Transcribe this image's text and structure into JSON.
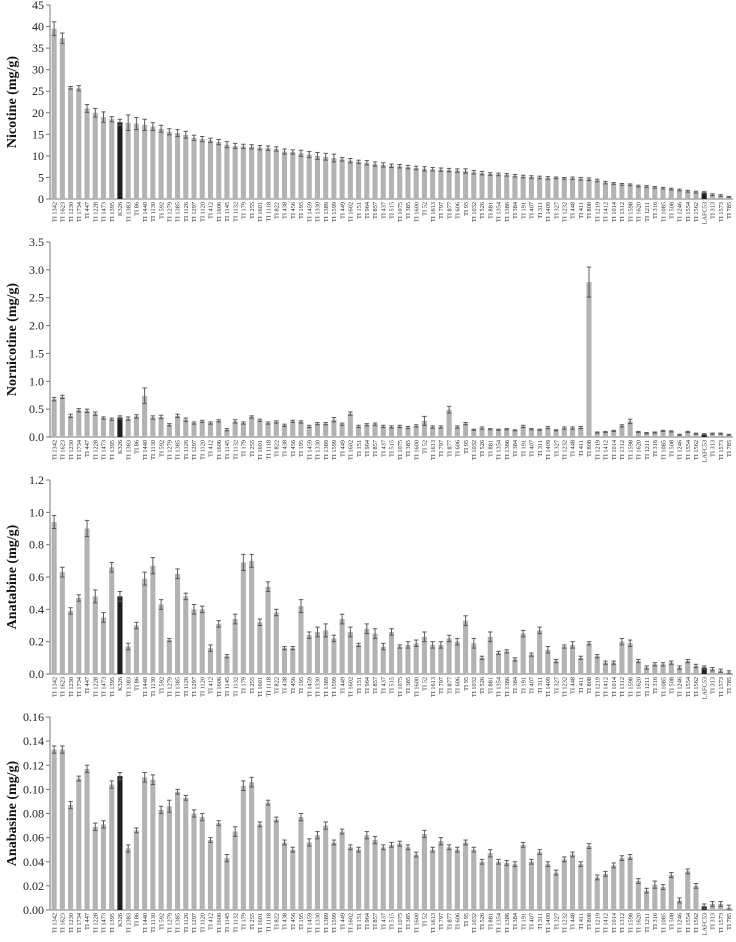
{
  "chart_data": [
    {
      "type": "bar",
      "ylabel": "Nicotine (mg/g)",
      "ylim": [
        0,
        45
      ],
      "yticks": [
        "0",
        "5",
        "10",
        "15",
        "20",
        "25",
        "30",
        "35",
        "40",
        "45"
      ],
      "grid": false,
      "categories": [
        "TI 1342",
        "TI 1623",
        "TI 1230",
        "TI 1734",
        "TI 447",
        "TI 1228",
        "TI 1473",
        "TI 1395",
        "K326",
        "TI 1383",
        "TI 86",
        "TI 1440",
        "TI 1130",
        "TI 592",
        "TI 1279",
        "TI 1385",
        "TI 1126",
        "TI 1297",
        "TI 1120",
        "TI 412",
        "TI 1606",
        "TI 1145",
        "TI 1132",
        "TI 179",
        "TI 255",
        "TI 1601",
        "TI 1118",
        "TI 822",
        "TI 438",
        "TI 456",
        "TI 195",
        "TI 1459",
        "TI 1330",
        "TI 1389",
        "TI 1599",
        "TI 449",
        "TI 1602",
        "TI 151",
        "TI 964",
        "TI 857",
        "TI 437",
        "TI 515",
        "TI 1075",
        "TI 385",
        "TI 1600",
        "TI 52",
        "TI 1613",
        "TI 797",
        "TI 877",
        "TI 606",
        "TI 95",
        "TI 1032",
        "TI 526",
        "TI 881",
        "TI 1354",
        "TI 1386",
        "TI 384",
        "TI 191",
        "TI 407",
        "TI 311",
        "TI 1409",
        "TI 327",
        "TI 1232",
        "TI 448",
        "TI 411",
        "TI 808",
        "TI 1219",
        "TI 1412",
        "TI 1014",
        "TI 1312",
        "TI 1598",
        "TI 1620",
        "TI 1211",
        "TI 316",
        "TI 1085",
        "TI 508",
        "TI 1246",
        "TI 1554",
        "TI 1562",
        "LAFC53",
        "TI 313",
        "TI 1573",
        "TI 785"
      ],
      "highlight": [
        "K326",
        "LAFC53"
      ],
      "values": [
        39.5,
        37.3,
        25.8,
        25.7,
        21.0,
        20.0,
        19.0,
        18.5,
        17.8,
        17.7,
        17.5,
        17.2,
        16.8,
        16.3,
        15.6,
        15.3,
        14.9,
        14.2,
        13.9,
        13.6,
        13.2,
        12.6,
        12.3,
        12.2,
        12.1,
        11.9,
        11.8,
        11.6,
        11.0,
        10.9,
        10.6,
        10.3,
        10.0,
        9.8,
        9.5,
        9.2,
        8.9,
        8.6,
        8.4,
        8.1,
        7.9,
        7.7,
        7.6,
        7.4,
        7.2,
        7.0,
        6.9,
        6.8,
        6.7,
        6.6,
        6.5,
        6.2,
        6.0,
        5.8,
        5.7,
        5.6,
        5.4,
        5.2,
        5.1,
        5.0,
        4.9,
        4.9,
        4.8,
        4.8,
        4.7,
        4.6,
        4.3,
        3.8,
        3.6,
        3.4,
        3.3,
        3.0,
        2.9,
        2.7,
        2.5,
        2.3,
        2.1,
        1.8,
        1.6,
        1.5,
        1.0,
        0.8,
        0.5
      ],
      "errors": [
        1.6,
        1.2,
        0.3,
        0.6,
        0.9,
        1.0,
        1.2,
        0.6,
        0.7,
        1.8,
        1.4,
        1.3,
        0.9,
        0.8,
        0.7,
        0.8,
        0.8,
        0.6,
        0.6,
        0.5,
        0.6,
        0.7,
        0.6,
        0.5,
        0.5,
        0.5,
        0.5,
        0.5,
        0.6,
        0.5,
        0.7,
        0.7,
        0.8,
        0.8,
        0.9,
        0.4,
        0.5,
        0.4,
        0.5,
        0.5,
        0.5,
        0.4,
        0.4,
        0.4,
        0.4,
        0.5,
        0.4,
        0.4,
        0.4,
        0.4,
        0.5,
        0.4,
        0.4,
        0.3,
        0.3,
        0.3,
        0.3,
        0.3,
        0.3,
        0.3,
        0.3,
        0.2,
        0.2,
        0.3,
        0.3,
        0.3,
        0.3,
        0.3,
        0.2,
        0.2,
        0.2,
        0.2,
        0.2,
        0.2,
        0.2,
        0.2,
        0.2,
        0.2,
        0.2,
        0.2,
        0.2,
        0.2,
        0.1
      ]
    },
    {
      "type": "bar",
      "ylabel": "Nornicotine (mg/g)",
      "ylim": [
        0,
        3.5
      ],
      "yticks": [
        "0.0",
        "0.5",
        "1.0",
        "1.5",
        "2.0",
        "2.5",
        "3.0",
        "3.5"
      ],
      "grid": false,
      "categories": [
        "TI 1342",
        "TI 1623",
        "TI 1230",
        "TI 1734",
        "TI 447",
        "TI 1228",
        "TI 1473",
        "TI 1395",
        "K326",
        "TI 1383",
        "TI 86",
        "TI 1440",
        "TI 1130",
        "TI 592",
        "TI 1279",
        "TI 1385",
        "TI 1126",
        "TI 1297",
        "TI 1120",
        "TI 412",
        "TI 1606",
        "TI 1145",
        "TI 1132",
        "TI 179",
        "TI 255",
        "TI 1601",
        "TI 1118",
        "TI 822",
        "TI 438",
        "TI 456",
        "TI 195",
        "TI 1459",
        "TI 1330",
        "TI 1389",
        "TI 1599",
        "TI 449",
        "TI 1602",
        "TI 151",
        "TI 964",
        "TI 857",
        "TI 437",
        "TI 515",
        "TI 1075",
        "TI 385",
        "TI 1600",
        "TI 52",
        "TI 1613",
        "TI 797",
        "TI 877",
        "TI 606",
        "TI 95",
        "TI 1032",
        "TI 526",
        "TI 881",
        "TI 1354",
        "TI 1386",
        "TI 384",
        "TI 191",
        "TI 407",
        "TI 311",
        "TI 1409",
        "TI 327",
        "TI 1232",
        "TI 448",
        "TI 411",
        "TI 808",
        "TI 1219",
        "TI 1412",
        "TI 1014",
        "TI 1312",
        "TI 1598",
        "TI 1620",
        "TI 1211",
        "TI 316",
        "TI 1085",
        "TI 508",
        "TI 1246",
        "TI 1554",
        "TI 1562",
        "LAFC53",
        "TI 313",
        "TI 1573",
        "TI 785"
      ],
      "highlight": [
        "K326",
        "LAFC53"
      ],
      "values": [
        0.68,
        0.72,
        0.38,
        0.48,
        0.47,
        0.42,
        0.34,
        0.32,
        0.35,
        0.33,
        0.37,
        0.74,
        0.35,
        0.36,
        0.22,
        0.38,
        0.31,
        0.25,
        0.28,
        0.25,
        0.29,
        0.13,
        0.28,
        0.25,
        0.36,
        0.3,
        0.25,
        0.27,
        0.21,
        0.28,
        0.27,
        0.19,
        0.24,
        0.24,
        0.31,
        0.23,
        0.42,
        0.19,
        0.22,
        0.23,
        0.19,
        0.18,
        0.19,
        0.17,
        0.2,
        0.29,
        0.18,
        0.18,
        0.49,
        0.18,
        0.24,
        0.13,
        0.16,
        0.14,
        0.13,
        0.14,
        0.12,
        0.19,
        0.14,
        0.13,
        0.17,
        0.12,
        0.16,
        0.16,
        0.17,
        2.78,
        0.08,
        0.09,
        0.11,
        0.2,
        0.28,
        0.09,
        0.07,
        0.08,
        0.11,
        0.1,
        0.04,
        0.09,
        0.06,
        0.05,
        0.06,
        0.06,
        0.04
      ],
      "errors": [
        0.03,
        0.03,
        0.03,
        0.03,
        0.03,
        0.03,
        0.02,
        0.02,
        0.03,
        0.03,
        0.03,
        0.14,
        0.03,
        0.03,
        0.02,
        0.03,
        0.03,
        0.02,
        0.02,
        0.02,
        0.02,
        0.02,
        0.03,
        0.02,
        0.02,
        0.02,
        0.02,
        0.02,
        0.02,
        0.02,
        0.02,
        0.02,
        0.02,
        0.02,
        0.04,
        0.02,
        0.03,
        0.02,
        0.02,
        0.02,
        0.02,
        0.02,
        0.02,
        0.02,
        0.02,
        0.08,
        0.02,
        0.02,
        0.06,
        0.02,
        0.02,
        0.01,
        0.02,
        0.01,
        0.01,
        0.01,
        0.01,
        0.02,
        0.01,
        0.01,
        0.02,
        0.01,
        0.02,
        0.02,
        0.02,
        0.27,
        0.01,
        0.01,
        0.01,
        0.02,
        0.04,
        0.01,
        0.01,
        0.01,
        0.01,
        0.01,
        0.01,
        0.01,
        0.01,
        0.01,
        0.01,
        0.01,
        0.01
      ]
    },
    {
      "type": "bar",
      "ylabel": "Anatabine (mg/g)",
      "ylim": [
        0,
        1.2
      ],
      "yticks": [
        "0.0",
        "0.2",
        "0.4",
        "0.6",
        "0.8",
        "1.0",
        "1.2"
      ],
      "grid": false,
      "categories": [
        "TI 1342",
        "TI 1623",
        "TI 1230",
        "TI 1734",
        "TI 447",
        "TI 1228",
        "TI 1473",
        "TI 1395",
        "K326",
        "TI 1383",
        "TI 86",
        "TI 1440",
        "TI 1130",
        "TI 592",
        "TI 1279",
        "TI 1385",
        "TI 1126",
        "TI 1297",
        "TI 1120",
        "TI 412",
        "TI 1606",
        "TI 1145",
        "TI 1132",
        "TI 179",
        "TI 255",
        "TI 1601",
        "TI 1118",
        "TI 822",
        "TI 438",
        "TI 456",
        "TI 195",
        "TI 1459",
        "TI 1330",
        "TI 1389",
        "TI 1599",
        "TI 449",
        "TI 1602",
        "TI 151",
        "TI 964",
        "TI 857",
        "TI 437",
        "TI 515",
        "TI 1075",
        "TI 385",
        "TI 1600",
        "TI 52",
        "TI 1613",
        "TI 797",
        "TI 877",
        "TI 606",
        "TI 95",
        "TI 1032",
        "TI 526",
        "TI 881",
        "TI 1354",
        "TI 1386",
        "TI 384",
        "TI 191",
        "TI 407",
        "TI 311",
        "TI 1409",
        "TI 327",
        "TI 1232",
        "TI 448",
        "TI 411",
        "TI 808",
        "TI 1219",
        "TI 1412",
        "TI 1014",
        "TI 1312",
        "TI 1598",
        "TI 1620",
        "TI 1211",
        "TI 316",
        "TI 1085",
        "TI 508",
        "TI 1246",
        "TI 1554",
        "TI 1562",
        "LAFC53",
        "TI 313",
        "TI 1573",
        "TI 785"
      ],
      "highlight": [
        "K326",
        "LAFC53"
      ],
      "values": [
        0.94,
        0.63,
        0.39,
        0.47,
        0.9,
        0.48,
        0.35,
        0.66,
        0.48,
        0.17,
        0.3,
        0.59,
        0.67,
        0.43,
        0.21,
        0.62,
        0.48,
        0.4,
        0.4,
        0.16,
        0.31,
        0.11,
        0.34,
        0.69,
        0.7,
        0.32,
        0.54,
        0.38,
        0.16,
        0.16,
        0.42,
        0.24,
        0.26,
        0.27,
        0.22,
        0.34,
        0.26,
        0.18,
        0.28,
        0.25,
        0.17,
        0.26,
        0.17,
        0.18,
        0.19,
        0.23,
        0.18,
        0.18,
        0.22,
        0.2,
        0.33,
        0.19,
        0.1,
        0.23,
        0.13,
        0.14,
        0.09,
        0.25,
        0.12,
        0.27,
        0.15,
        0.08,
        0.17,
        0.18,
        0.1,
        0.19,
        0.11,
        0.07,
        0.07,
        0.2,
        0.19,
        0.08,
        0.04,
        0.06,
        0.06,
        0.07,
        0.04,
        0.08,
        0.05,
        0.04,
        0.03,
        0.02,
        0.01
      ],
      "errors": [
        0.04,
        0.03,
        0.02,
        0.02,
        0.05,
        0.04,
        0.03,
        0.03,
        0.03,
        0.02,
        0.02,
        0.04,
        0.05,
        0.03,
        0.01,
        0.03,
        0.02,
        0.03,
        0.02,
        0.02,
        0.02,
        0.01,
        0.03,
        0.05,
        0.04,
        0.02,
        0.03,
        0.02,
        0.01,
        0.01,
        0.04,
        0.02,
        0.03,
        0.04,
        0.02,
        0.03,
        0.03,
        0.01,
        0.03,
        0.03,
        0.02,
        0.02,
        0.01,
        0.02,
        0.02,
        0.03,
        0.02,
        0.02,
        0.02,
        0.02,
        0.03,
        0.03,
        0.01,
        0.03,
        0.01,
        0.01,
        0.01,
        0.02,
        0.01,
        0.02,
        0.02,
        0.01,
        0.01,
        0.02,
        0.01,
        0.01,
        0.01,
        0.01,
        0.01,
        0.02,
        0.02,
        0.01,
        0.01,
        0.01,
        0.01,
        0.01,
        0.01,
        0.01,
        0.01,
        0.01,
        0.01,
        0.01,
        0.01
      ]
    },
    {
      "type": "bar",
      "ylabel": "Anabasine (mg/g)",
      "ylim": [
        0,
        0.16
      ],
      "yticks": [
        "0.00",
        "0.02",
        "0.04",
        "0.06",
        "0.08",
        "0.10",
        "0.12",
        "0.14",
        "0.16"
      ],
      "grid": false,
      "categories": [
        "TI 1342",
        "TI 1623",
        "TI 1230",
        "TI 1734",
        "TI 447",
        "TI 1228",
        "TI 1473",
        "TI 1395",
        "K326",
        "TI 1383",
        "TI 86",
        "TI 1440",
        "TI 1130",
        "TI 592",
        "TI 1279",
        "TI 1385",
        "TI 1126",
        "TI 1297",
        "TI 1120",
        "TI 412",
        "TI 1606",
        "TI 1145",
        "TI 1132",
        "TI 179",
        "TI 255",
        "TI 1601",
        "TI 1118",
        "TI 822",
        "TI 438",
        "TI 456",
        "TI 195",
        "TI 1459",
        "TI 1330",
        "TI 1389",
        "TI 1599",
        "TI 449",
        "TI 1602",
        "TI 151",
        "TI 964",
        "TI 857",
        "TI 437",
        "TI 515",
        "TI 1075",
        "TI 385",
        "TI 1600",
        "TI 52",
        "TI 1613",
        "TI 797",
        "TI 877",
        "TI 606",
        "TI 95",
        "TI 1032",
        "TI 526",
        "TI 881",
        "TI 1354",
        "TI 1386",
        "TI 384",
        "TI 191",
        "TI 407",
        "TI 311",
        "TI 1409",
        "TI 327",
        "TI 1232",
        "TI 448",
        "TI 411",
        "TI 808",
        "TI 1219",
        "TI 1412",
        "TI 1014",
        "TI 1312",
        "TI 1598",
        "TI 1620",
        "TI 1211",
        "TI 316",
        "TI 1085",
        "TI 508",
        "TI 1246",
        "TI 1554",
        "TI 1562",
        "LAFC53",
        "TI 313",
        "TI 1573",
        "TI 785"
      ],
      "highlight": [
        "K326",
        "LAFC53"
      ],
      "values": [
        0.133,
        0.133,
        0.087,
        0.109,
        0.117,
        0.069,
        0.071,
        0.104,
        0.111,
        0.051,
        0.066,
        0.11,
        0.108,
        0.083,
        0.086,
        0.098,
        0.093,
        0.08,
        0.077,
        0.058,
        0.072,
        0.043,
        0.065,
        0.103,
        0.106,
        0.071,
        0.089,
        0.075,
        0.056,
        0.05,
        0.077,
        0.056,
        0.062,
        0.07,
        0.056,
        0.065,
        0.052,
        0.05,
        0.062,
        0.058,
        0.052,
        0.054,
        0.055,
        0.052,
        0.046,
        0.063,
        0.05,
        0.057,
        0.052,
        0.05,
        0.056,
        0.05,
        0.04,
        0.047,
        0.04,
        0.039,
        0.038,
        0.054,
        0.04,
        0.048,
        0.038,
        0.031,
        0.042,
        0.046,
        0.038,
        0.053,
        0.027,
        0.03,
        0.037,
        0.043,
        0.044,
        0.024,
        0.016,
        0.021,
        0.019,
        0.029,
        0.008,
        0.032,
        0.02,
        0.003,
        0.005,
        0.005,
        0.002
      ],
      "errors": [
        0.003,
        0.003,
        0.003,
        0.002,
        0.003,
        0.003,
        0.003,
        0.003,
        0.003,
        0.003,
        0.002,
        0.004,
        0.004,
        0.003,
        0.005,
        0.002,
        0.002,
        0.003,
        0.003,
        0.002,
        0.002,
        0.003,
        0.004,
        0.004,
        0.004,
        0.002,
        0.002,
        0.002,
        0.002,
        0.002,
        0.003,
        0.003,
        0.003,
        0.003,
        0.002,
        0.002,
        0.002,
        0.002,
        0.003,
        0.003,
        0.002,
        0.002,
        0.002,
        0.002,
        0.002,
        0.003,
        0.002,
        0.003,
        0.002,
        0.002,
        0.002,
        0.002,
        0.002,
        0.003,
        0.002,
        0.002,
        0.002,
        0.002,
        0.002,
        0.002,
        0.002,
        0.002,
        0.002,
        0.002,
        0.002,
        0.002,
        0.002,
        0.002,
        0.002,
        0.002,
        0.002,
        0.002,
        0.002,
        0.003,
        0.002,
        0.002,
        0.002,
        0.002,
        0.002,
        0.002,
        0.002,
        0.002,
        0.002
      ]
    }
  ],
  "colors": {
    "bar": "#b3b3b3",
    "highlight": "#1e1e1e",
    "axis": "#777777",
    "error": "#595959"
  }
}
